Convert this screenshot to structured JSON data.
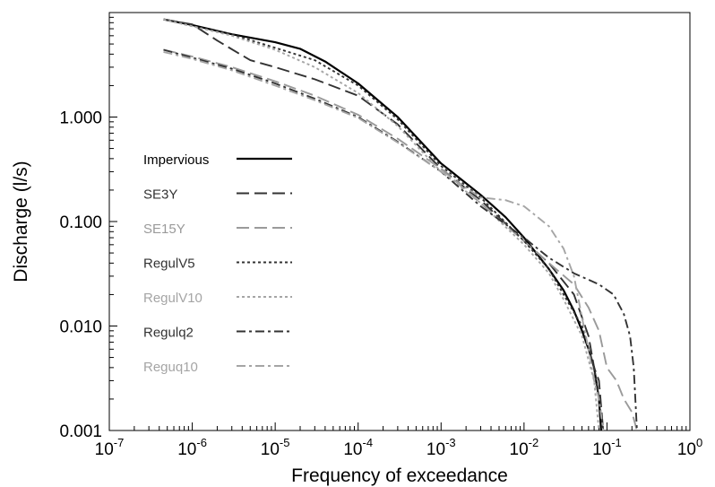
{
  "chart_data": {
    "type": "line",
    "title": "",
    "xlabel": "Frequency of exceedance",
    "ylabel": "Discharge (l/s)",
    "x_scale": "log",
    "y_scale": "log",
    "xlim": [
      1e-07,
      1
    ],
    "ylim": [
      0.001,
      10
    ],
    "grid": false,
    "legend_position": "middle-left",
    "x_ticks": [
      {
        "value": 1e-07,
        "base": "10",
        "exp": "-7"
      },
      {
        "value": 1e-06,
        "base": "10",
        "exp": "-6"
      },
      {
        "value": 1e-05,
        "base": "10",
        "exp": "-5"
      },
      {
        "value": 0.0001,
        "base": "10",
        "exp": "-4"
      },
      {
        "value": 0.001,
        "base": "10",
        "exp": "-3"
      },
      {
        "value": 0.01,
        "base": "10",
        "exp": "-2"
      },
      {
        "value": 0.1,
        "base": "10",
        "exp": "-1"
      },
      {
        "value": 1,
        "base": "10",
        "exp": "0"
      }
    ],
    "y_ticks": [
      {
        "value": 0.001,
        "label": "0.001"
      },
      {
        "value": 0.01,
        "label": "0.010"
      },
      {
        "value": 0.1,
        "label": "0.100"
      },
      {
        "value": 1,
        "label": "1.000"
      }
    ],
    "series": [
      {
        "name": "Impervious",
        "color": "#000000",
        "dash": "solid",
        "x": [
          4.5e-07,
          1e-06,
          3e-06,
          1e-05,
          2e-05,
          4e-05,
          0.0001,
          0.0003,
          0.001,
          0.003,
          0.006,
          0.01,
          0.02,
          0.03,
          0.04,
          0.05,
          0.06,
          0.07,
          0.08,
          0.085
        ],
        "y": [
          8.6,
          7.6,
          6.2,
          5.2,
          4.5,
          3.4,
          2.1,
          1.0,
          0.36,
          0.18,
          0.11,
          0.07,
          0.035,
          0.022,
          0.014,
          0.009,
          0.006,
          0.004,
          0.002,
          0.001
        ]
      },
      {
        "name": "SE3Y",
        "color": "#333333",
        "dash": "long",
        "x": [
          4.5e-07,
          1e-06,
          2e-06,
          5e-06,
          1e-05,
          3e-05,
          0.0001,
          0.0003,
          0.001,
          0.003,
          0.01,
          0.02,
          0.04,
          0.06,
          0.07,
          0.08,
          0.09
        ],
        "y": [
          8.6,
          7.7,
          5.4,
          3.5,
          3.0,
          2.3,
          1.6,
          0.85,
          0.32,
          0.16,
          0.065,
          0.04,
          0.02,
          0.008,
          0.004,
          0.003,
          0.001
        ]
      },
      {
        "name": "SE15Y",
        "color": "#9a9a9a",
        "dash": "long",
        "x": [
          4.5e-07,
          1e-06,
          3e-06,
          1e-05,
          3e-05,
          0.0001,
          0.0003,
          0.001,
          0.003,
          0.01,
          0.02,
          0.04,
          0.06,
          0.08,
          0.1,
          0.13,
          0.16,
          0.2,
          0.23
        ],
        "y": [
          4.4,
          3.8,
          3.0,
          2.2,
          1.6,
          1.05,
          0.62,
          0.32,
          0.15,
          0.065,
          0.04,
          0.025,
          0.015,
          0.009,
          0.004,
          0.003,
          0.002,
          0.0015,
          0.001
        ]
      },
      {
        "name": "RegulV5",
        "color": "#333333",
        "dash": "dotted",
        "x": [
          4.5e-07,
          1e-06,
          3e-06,
          1e-05,
          3e-05,
          0.0001,
          0.0003,
          0.001,
          0.003,
          0.01,
          0.02,
          0.03,
          0.05,
          0.07,
          0.08,
          0.09
        ],
        "y": [
          8.6,
          7.4,
          6.2,
          4.6,
          3.5,
          2.0,
          0.95,
          0.34,
          0.17,
          0.065,
          0.035,
          0.02,
          0.01,
          0.004,
          0.002,
          0.001
        ]
      },
      {
        "name": "RegulV10",
        "color": "#a5a5a5",
        "dash": "dotted",
        "x": [
          4.5e-07,
          1e-06,
          3e-06,
          1e-05,
          3e-05,
          0.0001,
          0.0003,
          0.001,
          0.003,
          0.01,
          0.02,
          0.03,
          0.05,
          0.07,
          0.08
        ],
        "y": [
          8.6,
          7.4,
          6.0,
          4.4,
          3.0,
          1.7,
          0.82,
          0.3,
          0.15,
          0.06,
          0.032,
          0.018,
          0.008,
          0.003,
          0.001
        ]
      },
      {
        "name": "Regulq2",
        "color": "#333333",
        "dash": "dashdot",
        "x": [
          4.5e-07,
          1e-06,
          3e-06,
          1e-05,
          3e-05,
          0.0001,
          0.0003,
          0.001,
          0.003,
          0.01,
          0.02,
          0.04,
          0.08,
          0.12,
          0.16,
          0.19,
          0.21,
          0.22,
          0.23
        ],
        "y": [
          4.4,
          3.7,
          2.9,
          2.1,
          1.5,
          1.0,
          0.58,
          0.3,
          0.14,
          0.07,
          0.045,
          0.032,
          0.025,
          0.02,
          0.013,
          0.008,
          0.004,
          0.002,
          0.001
        ]
      },
      {
        "name": "Reguq10",
        "color": "#a5a5a5",
        "dash": "dashdot",
        "x": [
          4.5e-07,
          1e-06,
          3e-06,
          1e-05,
          3e-05,
          0.0001,
          0.0003,
          0.001,
          0.003,
          0.006,
          0.01,
          0.02,
          0.03,
          0.04,
          0.05,
          0.06,
          0.07,
          0.08,
          0.09
        ],
        "y": [
          4.2,
          3.6,
          2.8,
          2.0,
          1.45,
          0.98,
          0.57,
          0.3,
          0.17,
          0.16,
          0.14,
          0.09,
          0.055,
          0.03,
          0.012,
          0.006,
          0.003,
          0.002,
          0.001
        ]
      }
    ]
  }
}
